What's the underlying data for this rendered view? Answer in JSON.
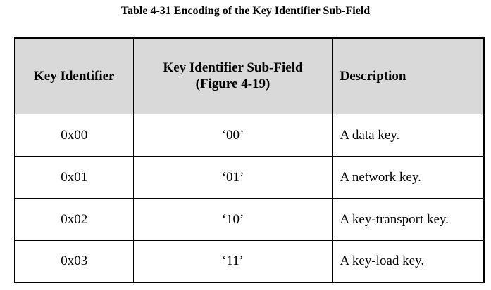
{
  "table": {
    "caption": "Table 4-31 Encoding of the Key Identifier Sub-Field",
    "headers": {
      "key_identifier": "Key Identifier",
      "sub_field_line1": "Key Identifier Sub-Field",
      "sub_field_line2": "(Figure 4-19)",
      "description": "Description"
    },
    "rows": [
      {
        "key_identifier": "0x00",
        "sub_field": "‘00’",
        "description": "A data key."
      },
      {
        "key_identifier": "0x01",
        "sub_field": "‘01’",
        "description": "A network key."
      },
      {
        "key_identifier": "0x02",
        "sub_field": "‘10’",
        "description": "A key-transport key."
      },
      {
        "key_identifier": "0x03",
        "sub_field": "‘11’",
        "description": "A key-load key."
      }
    ]
  }
}
